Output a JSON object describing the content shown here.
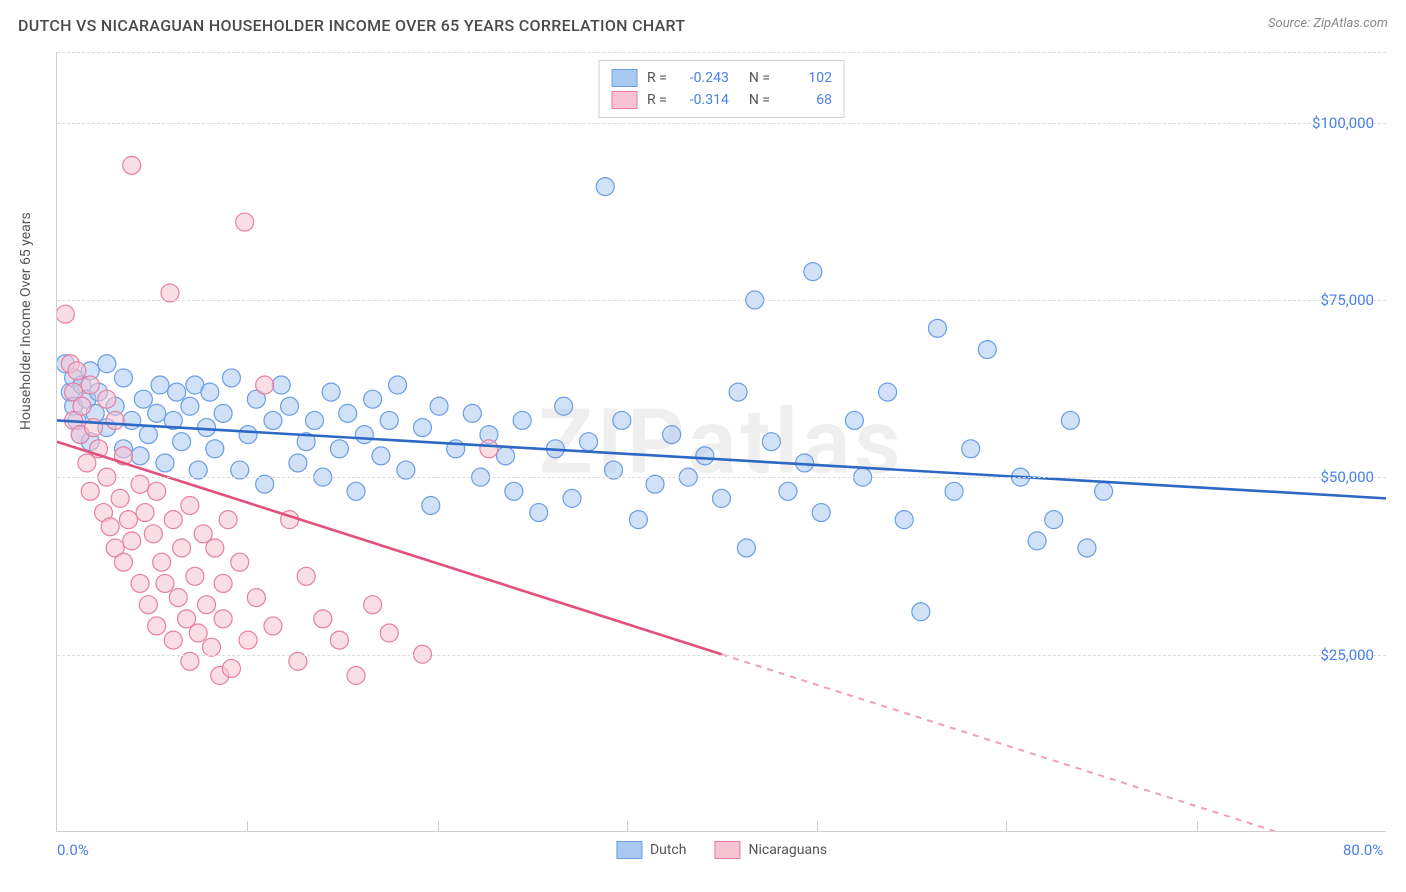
{
  "header": {
    "title": "DUTCH VS NICARAGUAN HOUSEHOLDER INCOME OVER 65 YEARS CORRELATION CHART",
    "source": "Source: ZipAtlas.com"
  },
  "watermark": "ZIPatlas",
  "chart": {
    "type": "scatter",
    "ylabel": "Householder Income Over 65 years",
    "xlim": [
      0,
      80
    ],
    "ylim": [
      0,
      110000
    ],
    "xticks": [
      {
        "v": 0,
        "l": "0.0%"
      },
      {
        "v": 80,
        "l": "80.0%"
      }
    ],
    "xminor": [
      11.4,
      22.9,
      34.3,
      45.7,
      57.1,
      68.6
    ],
    "yticks": [
      {
        "v": 25000,
        "l": "$25,000"
      },
      {
        "v": 50000,
        "l": "$50,000"
      },
      {
        "v": 75000,
        "l": "$75,000"
      },
      {
        "v": 100000,
        "l": "$100,000"
      }
    ],
    "grid_color": "#dcdcdc",
    "background_color": "#ffffff",
    "marker_radius": 9,
    "marker_opacity": 0.55,
    "series": [
      {
        "name": "Dutch",
        "color": "#a9c9f2",
        "stroke": "#6b9ee3",
        "line_color": "#2d68c4",
        "R": "-0.243",
        "N": "102",
        "trend": {
          "x1": 0,
          "y1": 58000,
          "x2": 80,
          "y2": 47000,
          "solid_to": 80
        },
        "pts": [
          [
            0.5,
            66000
          ],
          [
            0.8,
            62000
          ],
          [
            1,
            64000
          ],
          [
            1,
            60000
          ],
          [
            1.2,
            58000
          ],
          [
            1.4,
            56000
          ],
          [
            1.5,
            63000
          ],
          [
            1.8,
            61000
          ],
          [
            2,
            65000
          ],
          [
            2,
            55000
          ],
          [
            2.3,
            59000
          ],
          [
            2.5,
            62000
          ],
          [
            3,
            66000
          ],
          [
            3,
            57000
          ],
          [
            3.5,
            60000
          ],
          [
            4,
            64000
          ],
          [
            4,
            54000
          ],
          [
            4.5,
            58000
          ],
          [
            5,
            53000
          ],
          [
            5.2,
            61000
          ],
          [
            5.5,
            56000
          ],
          [
            6,
            59000
          ],
          [
            6.2,
            63000
          ],
          [
            6.5,
            52000
          ],
          [
            7,
            58000
          ],
          [
            7.2,
            62000
          ],
          [
            7.5,
            55000
          ],
          [
            8,
            60000
          ],
          [
            8.3,
            63000
          ],
          [
            8.5,
            51000
          ],
          [
            9,
            57000
          ],
          [
            9.2,
            62000
          ],
          [
            9.5,
            54000
          ],
          [
            10,
            59000
          ],
          [
            10.5,
            64000
          ],
          [
            11,
            51000
          ],
          [
            11.5,
            56000
          ],
          [
            12,
            61000
          ],
          [
            12.5,
            49000
          ],
          [
            13,
            58000
          ],
          [
            13.5,
            63000
          ],
          [
            14,
            60000
          ],
          [
            14.5,
            52000
          ],
          [
            15,
            55000
          ],
          [
            15.5,
            58000
          ],
          [
            16,
            50000
          ],
          [
            16.5,
            62000
          ],
          [
            17,
            54000
          ],
          [
            17.5,
            59000
          ],
          [
            18,
            48000
          ],
          [
            18.5,
            56000
          ],
          [
            19,
            61000
          ],
          [
            19.5,
            53000
          ],
          [
            20,
            58000
          ],
          [
            20.5,
            63000
          ],
          [
            21,
            51000
          ],
          [
            22,
            57000
          ],
          [
            22.5,
            46000
          ],
          [
            23,
            60000
          ],
          [
            24,
            54000
          ],
          [
            25,
            59000
          ],
          [
            25.5,
            50000
          ],
          [
            26,
            56000
          ],
          [
            27,
            53000
          ],
          [
            27.5,
            48000
          ],
          [
            28,
            58000
          ],
          [
            29,
            45000
          ],
          [
            30,
            54000
          ],
          [
            30.5,
            60000
          ],
          [
            31,
            47000
          ],
          [
            32,
            55000
          ],
          [
            33,
            91000
          ],
          [
            33.5,
            51000
          ],
          [
            34,
            58000
          ],
          [
            35,
            44000
          ],
          [
            36,
            49000
          ],
          [
            37,
            56000
          ],
          [
            38,
            50000
          ],
          [
            39,
            53000
          ],
          [
            40,
            47000
          ],
          [
            41,
            62000
          ],
          [
            41.5,
            40000
          ],
          [
            42,
            75000
          ],
          [
            43,
            55000
          ],
          [
            44,
            48000
          ],
          [
            45,
            52000
          ],
          [
            45.5,
            79000
          ],
          [
            46,
            45000
          ],
          [
            48,
            58000
          ],
          [
            48.5,
            50000
          ],
          [
            50,
            62000
          ],
          [
            51,
            44000
          ],
          [
            52,
            31000
          ],
          [
            53,
            71000
          ],
          [
            54,
            48000
          ],
          [
            55,
            54000
          ],
          [
            56,
            68000
          ],
          [
            58,
            50000
          ],
          [
            59,
            41000
          ],
          [
            60,
            44000
          ],
          [
            61,
            58000
          ],
          [
            62,
            40000
          ],
          [
            63,
            48000
          ]
        ]
      },
      {
        "name": "Nicaraguans",
        "color": "#f6c3d2",
        "stroke": "#e77fa2",
        "line_color": "#e3507c",
        "R": "-0.314",
        "N": "68",
        "trend": {
          "x1": 0,
          "y1": 55000,
          "x2": 80,
          "y2": -5000,
          "solid_to": 40
        },
        "pts": [
          [
            0.5,
            73000
          ],
          [
            0.8,
            66000
          ],
          [
            1,
            62000
          ],
          [
            1,
            58000
          ],
          [
            1.2,
            65000
          ],
          [
            1.4,
            56000
          ],
          [
            1.5,
            60000
          ],
          [
            1.8,
            52000
          ],
          [
            2,
            63000
          ],
          [
            2,
            48000
          ],
          [
            2.2,
            57000
          ],
          [
            2.5,
            54000
          ],
          [
            2.8,
            45000
          ],
          [
            3,
            61000
          ],
          [
            3,
            50000
          ],
          [
            3.2,
            43000
          ],
          [
            3.5,
            58000
          ],
          [
            3.5,
            40000
          ],
          [
            3.8,
            47000
          ],
          [
            4,
            53000
          ],
          [
            4,
            38000
          ],
          [
            4.3,
            44000
          ],
          [
            4.5,
            94000
          ],
          [
            4.5,
            41000
          ],
          [
            5,
            49000
          ],
          [
            5,
            35000
          ],
          [
            5.3,
            45000
          ],
          [
            5.5,
            32000
          ],
          [
            5.8,
            42000
          ],
          [
            6,
            48000
          ],
          [
            6,
            29000
          ],
          [
            6.3,
            38000
          ],
          [
            6.5,
            35000
          ],
          [
            6.8,
            76000
          ],
          [
            7,
            44000
          ],
          [
            7,
            27000
          ],
          [
            7.3,
            33000
          ],
          [
            7.5,
            40000
          ],
          [
            7.8,
            30000
          ],
          [
            8,
            46000
          ],
          [
            8,
            24000
          ],
          [
            8.3,
            36000
          ],
          [
            8.5,
            28000
          ],
          [
            8.8,
            42000
          ],
          [
            9,
            32000
          ],
          [
            9.3,
            26000
          ],
          [
            9.5,
            40000
          ],
          [
            9.8,
            22000
          ],
          [
            10,
            35000
          ],
          [
            10,
            30000
          ],
          [
            10.3,
            44000
          ],
          [
            10.5,
            23000
          ],
          [
            11,
            38000
          ],
          [
            11.3,
            86000
          ],
          [
            11.5,
            27000
          ],
          [
            12,
            33000
          ],
          [
            12.5,
            63000
          ],
          [
            13,
            29000
          ],
          [
            14,
            44000
          ],
          [
            14.5,
            24000
          ],
          [
            15,
            36000
          ],
          [
            16,
            30000
          ],
          [
            17,
            27000
          ],
          [
            18,
            22000
          ],
          [
            19,
            32000
          ],
          [
            20,
            28000
          ],
          [
            22,
            25000
          ],
          [
            26,
            54000
          ]
        ]
      }
    ],
    "legend_bottom": [
      {
        "name": "Dutch",
        "fill": "#a9c9f2",
        "stroke": "#6b9ee3"
      },
      {
        "name": "Nicaraguans",
        "fill": "#f6c3d2",
        "stroke": "#e77fa2"
      }
    ]
  }
}
